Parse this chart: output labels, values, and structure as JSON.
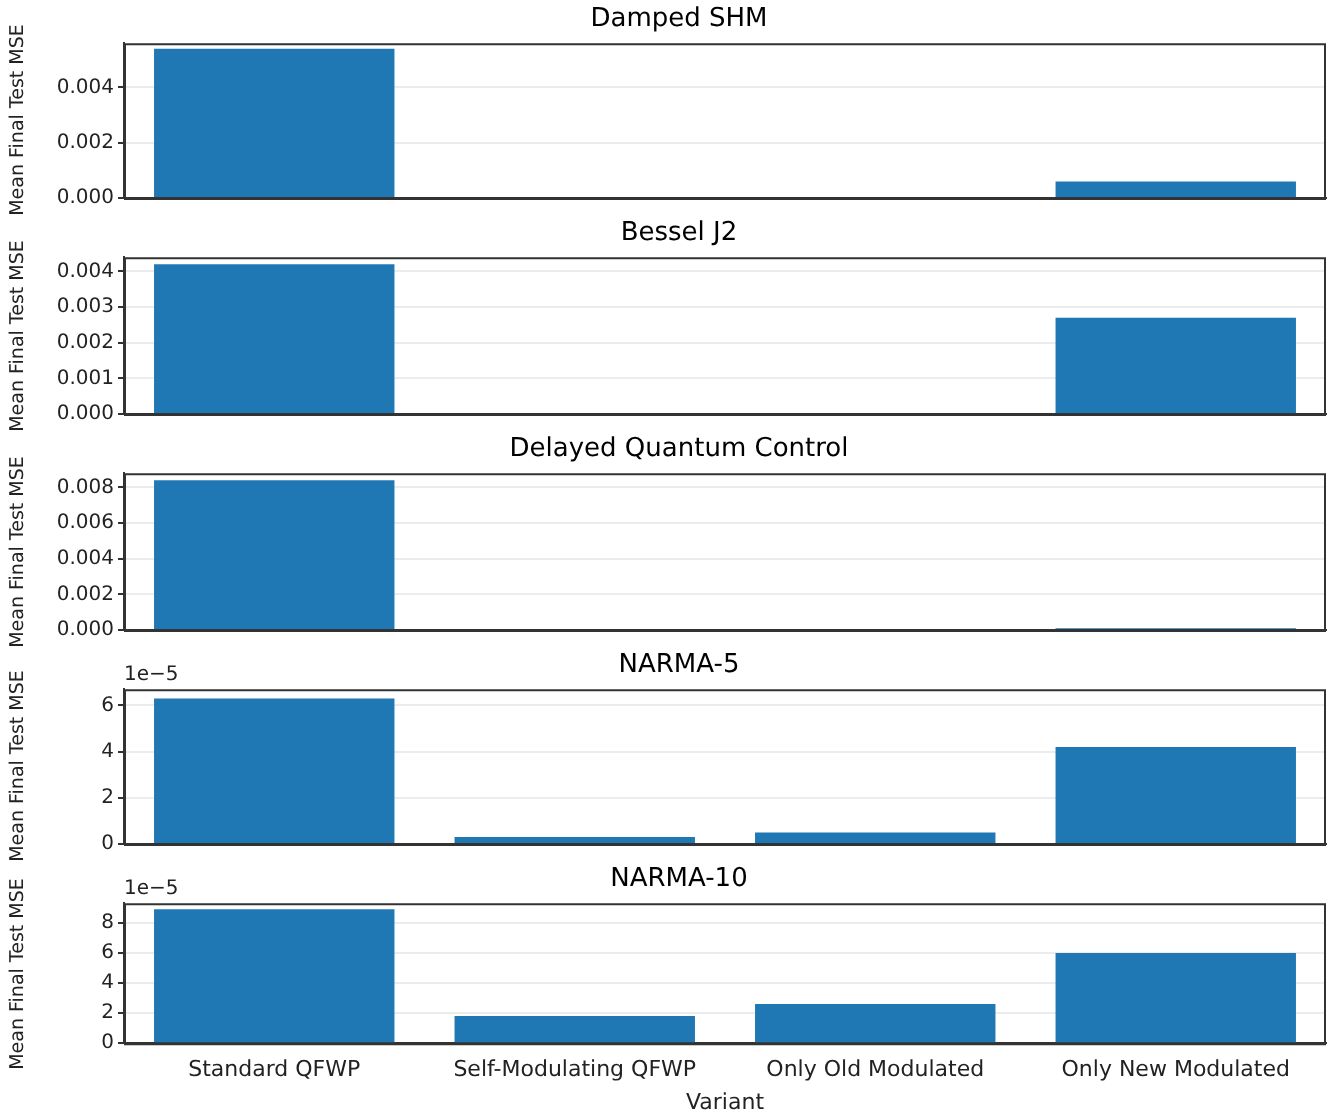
{
  "chart_data": [
    {
      "type": "bar",
      "title": "Damped SHM",
      "ylabel": "Mean Final Test MSE",
      "categories": [
        null,
        null,
        null,
        null
      ],
      "values": [
        0.0054,
        0,
        0,
        0.0006
      ],
      "color": "#1f77b4",
      "ylim": [
        0,
        0.0056
      ],
      "yticks": [
        {
          "value": 0,
          "label": "0.000"
        },
        {
          "value": 0.002,
          "label": "0.002"
        },
        {
          "value": 0.004,
          "label": "0.004"
        }
      ],
      "grid": "y",
      "tick_labels": "y"
    },
    {
      "type": "bar",
      "title": "Bessel J2",
      "ylabel": "Mean Final Test MSE",
      "categories": [
        null,
        null,
        null,
        null
      ],
      "values": [
        0.0042,
        0,
        0,
        0.0027
      ],
      "color": "#1f77b4",
      "ylim": [
        0,
        0.0044
      ],
      "yticks": [
        {
          "value": 0,
          "label": "0.000"
        },
        {
          "value": 0.001,
          "label": "0.001"
        },
        {
          "value": 0.002,
          "label": "0.002"
        },
        {
          "value": 0.003,
          "label": "0.003"
        },
        {
          "value": 0.004,
          "label": "0.004"
        }
      ],
      "grid": "y",
      "tick_labels": "y"
    },
    {
      "type": "bar",
      "title": "Delayed Quantum Control",
      "ylabel": "Mean Final Test MSE",
      "categories": [
        null,
        null,
        null,
        null
      ],
      "values": [
        0.0084,
        0,
        0,
        0.0001
      ],
      "color": "#1f77b4",
      "ylim": [
        0,
        0.0088
      ],
      "yticks": [
        {
          "value": 0,
          "label": "0.000"
        },
        {
          "value": 0.002,
          "label": "0.002"
        },
        {
          "value": 0.004,
          "label": "0.004"
        },
        {
          "value": 0.006,
          "label": "0.006"
        },
        {
          "value": 0.008,
          "label": "0.008"
        }
      ],
      "grid": "y",
      "tick_labels": "y"
    },
    {
      "type": "bar",
      "title": "NARMA-5",
      "ylabel": "Mean Final Test MSE",
      "annotations": [
        "1e−5"
      ],
      "categories": [
        null,
        null,
        null,
        null
      ],
      "values": [
        6.3,
        0.3,
        0.5,
        4.2
      ],
      "color": "#1f77b4",
      "ylim": [
        0,
        6.7
      ],
      "yticks": [
        0,
        2,
        4,
        6
      ],
      "grid": "y",
      "tick_labels": "y"
    },
    {
      "type": "bar",
      "title": "NARMA-10",
      "xlabel": "Variant",
      "ylabel": "Mean Final Test MSE",
      "annotations": [
        "1e−5"
      ],
      "categories": [
        "Standard QFWP",
        "Self-Modulating QFWP",
        "Only Old Modulated",
        "Only New Modulated"
      ],
      "values": [
        8.9,
        1.8,
        2.6,
        6.0
      ],
      "color": "#1f77b4",
      "ylim": [
        0,
        9.3
      ],
      "yticks": [
        0,
        2,
        4,
        6,
        8
      ],
      "grid": "y"
    }
  ]
}
